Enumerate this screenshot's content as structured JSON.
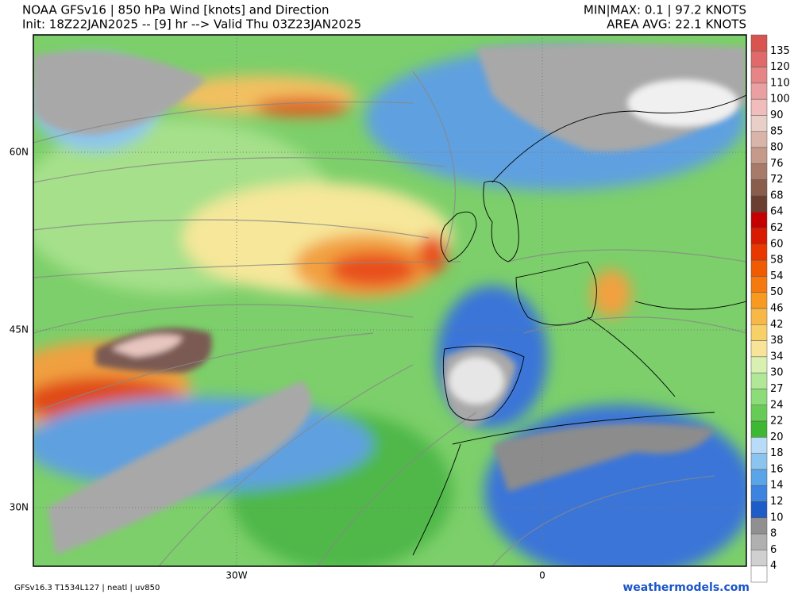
{
  "header": {
    "title": "NOAA GFSv16 | 850 hPa Wind [knots] and Direction",
    "subtitle": "Init: 18Z22JAN2025 -- [9] hr --> Valid Thu 03Z23JAN2025",
    "minmax": "MIN|MAX: 0.1 | 97.2 KNOTS",
    "area_avg": "AREA AVG: 22.1 KNOTS"
  },
  "map": {
    "lat_labels": [
      "60N",
      "45N",
      "30N"
    ],
    "lon_labels": [
      "30W",
      "0"
    ]
  },
  "colorbar": {
    "labels": [
      135,
      120,
      110,
      100,
      90,
      85,
      80,
      76,
      72,
      68,
      64,
      62,
      60,
      58,
      54,
      50,
      46,
      42,
      38,
      34,
      30,
      27,
      24,
      22,
      20,
      18,
      16,
      14,
      12,
      10,
      8,
      6,
      4
    ]
  },
  "footer": {
    "model": "GFSv16.3 T1534L127 | neatl | uv850",
    "site": "weathermodels.com"
  }
}
